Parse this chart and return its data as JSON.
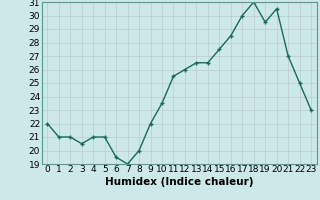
{
  "x": [
    0,
    1,
    2,
    3,
    4,
    5,
    6,
    7,
    8,
    9,
    10,
    11,
    12,
    13,
    14,
    15,
    16,
    17,
    18,
    19,
    20,
    21,
    22,
    23
  ],
  "y": [
    22,
    21,
    21,
    20.5,
    21,
    21,
    19.5,
    19,
    20,
    22,
    23.5,
    25.5,
    26,
    26.5,
    26.5,
    27.5,
    28.5,
    30,
    31,
    29.5,
    30.5,
    27,
    25,
    23
  ],
  "line_color": "#1a6b5a",
  "marker": "+",
  "xlabel": "Humidex (Indice chaleur)",
  "ylim": [
    19,
    31
  ],
  "xlim": [
    -0.5,
    23.5
  ],
  "yticks": [
    19,
    20,
    21,
    22,
    23,
    24,
    25,
    26,
    27,
    28,
    29,
    30,
    31
  ],
  "xticks": [
    0,
    1,
    2,
    3,
    4,
    5,
    6,
    7,
    8,
    9,
    10,
    11,
    12,
    13,
    14,
    15,
    16,
    17,
    18,
    19,
    20,
    21,
    22,
    23
  ],
  "bg_color": "#cce8e8",
  "grid_color": "#bbcccc",
  "tick_fontsize": 6.5,
  "xlabel_fontsize": 7.5,
  "line_width": 1.0,
  "marker_size": 3.5
}
